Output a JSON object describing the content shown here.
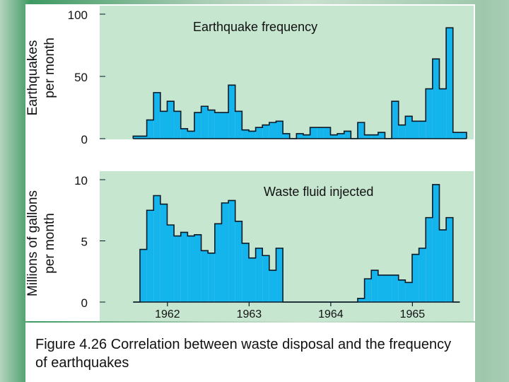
{
  "caption": "Figure 4.26 Correlation between waste disposal and the frequency of earthquakes",
  "colors": {
    "bar_fill": "#14b4ec",
    "bar_stroke": "#0a1a28",
    "plot_background": "#c6e6cf",
    "text": "#111111"
  },
  "chart_data": [
    {
      "type": "bar",
      "title": "Earthquake frequency",
      "ylabel": [
        "Earthquakes",
        "per month"
      ],
      "ylim": [
        0,
        100
      ],
      "yticks": [
        0,
        50,
        100
      ],
      "xlim": [
        1961.17,
        1965.75
      ],
      "x_step_months": 1,
      "x_start": 1961.58,
      "values": [
        2,
        2,
        15,
        37,
        22,
        30,
        22,
        8,
        6,
        21,
        26,
        23,
        21,
        21,
        43,
        22,
        7,
        6,
        9,
        11,
        13,
        14,
        4,
        0,
        4,
        3,
        9,
        9,
        9,
        3,
        4,
        6,
        0,
        13,
        3,
        3,
        5,
        0,
        30,
        11,
        18,
        14,
        14,
        40,
        64,
        40,
        89,
        5,
        5
      ],
      "grid": false
    },
    {
      "type": "bar",
      "title": "Waste fluid injected",
      "ylabel": [
        "Millions of gallons",
        "per month"
      ],
      "ylim": [
        0,
        10
      ],
      "yticks": [
        0,
        5,
        10
      ],
      "xlim": [
        1961.17,
        1965.75
      ],
      "x_step_months": 1,
      "x_start": 1961.58,
      "values": [
        0,
        4.3,
        7.5,
        8.7,
        8.0,
        6.3,
        5.4,
        5.7,
        5.4,
        5.5,
        4.2,
        4.0,
        6.4,
        8.1,
        8.3,
        6.6,
        4.8,
        3.6,
        4.4,
        3.8,
        2.6,
        4.4,
        0,
        0,
        0,
        0,
        0,
        0,
        0,
        0,
        0,
        0,
        0,
        0.3,
        1.9,
        2.6,
        2.2,
        2.2,
        2.2,
        1.8,
        1.6,
        3.9,
        4.4,
        6.9,
        9.6,
        5.9,
        6.9,
        0
      ],
      "xlabel_ticks": [
        1962,
        1963,
        1964,
        1965
      ],
      "grid": false
    }
  ]
}
